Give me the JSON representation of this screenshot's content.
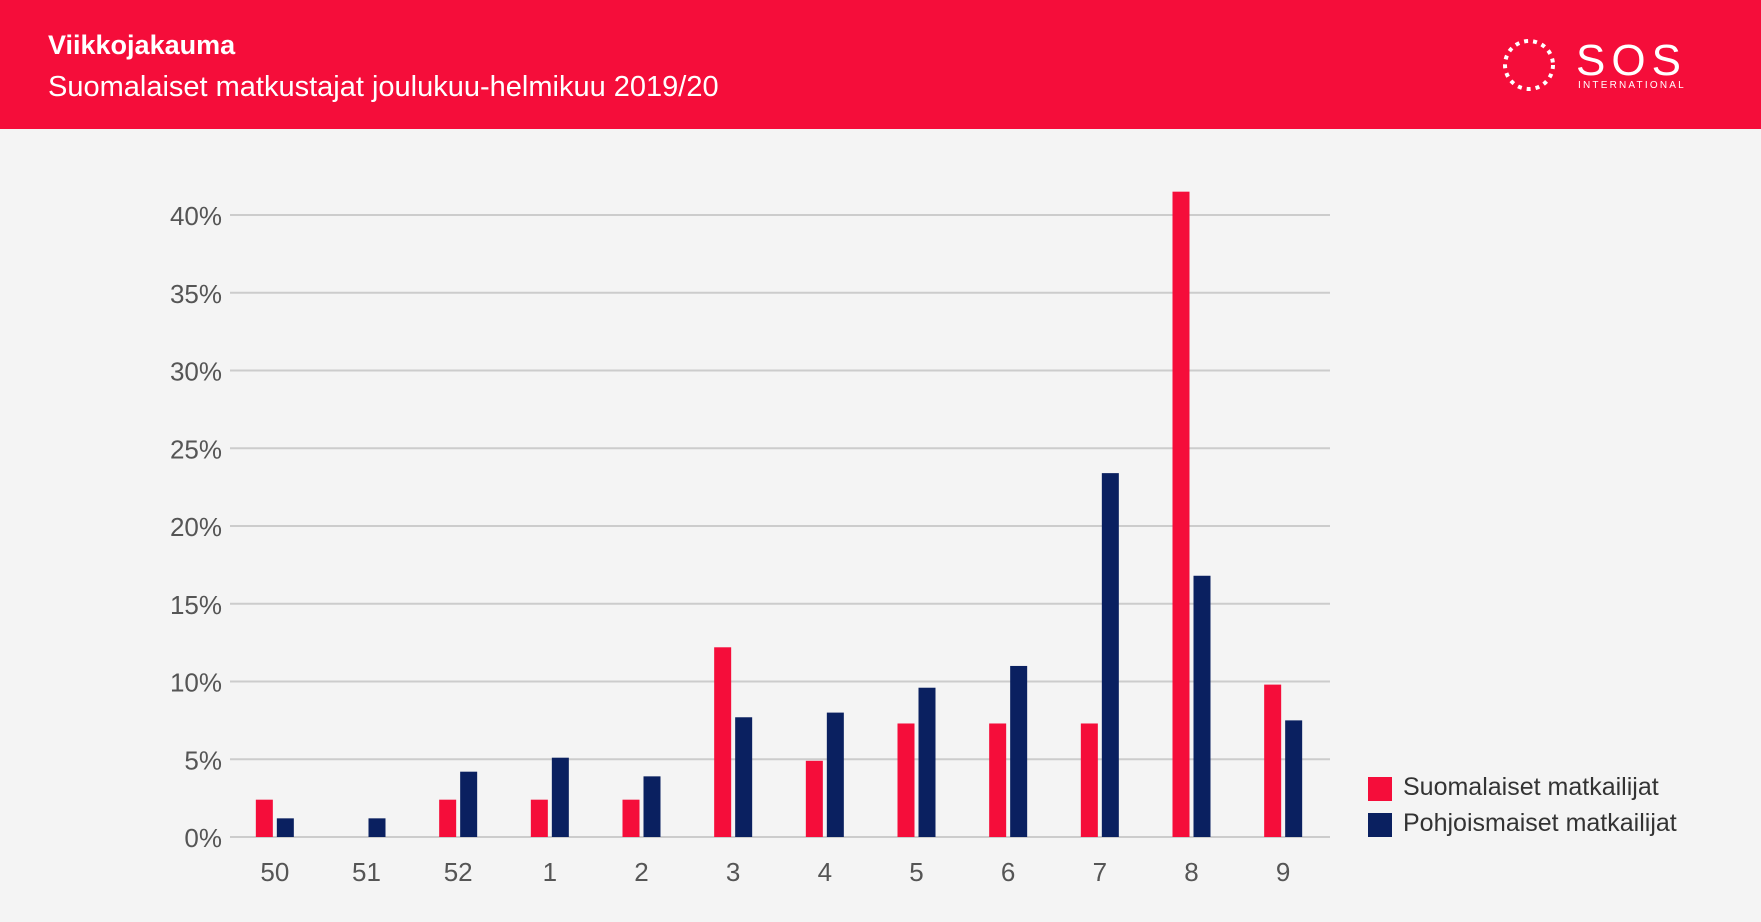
{
  "header": {
    "title": "Viikkojakauma",
    "subtitle": "Suomalaiset matkustajat joulukuu-helmikuu 2019/20"
  },
  "logo": {
    "brand": "SOS",
    "sub": "INTERNATIONAL"
  },
  "colors": {
    "header_bg": "#f50d3a",
    "series_1": "#f50d3a",
    "series_2": "#0a2060",
    "grid": "#cccccc",
    "background": "#f4f4f4"
  },
  "chart_data": {
    "type": "bar",
    "title": "",
    "xlabel": "",
    "ylabel": "",
    "categories": [
      "50",
      "51",
      "52",
      "1",
      "2",
      "3",
      "4",
      "5",
      "6",
      "7",
      "8",
      "9"
    ],
    "series": [
      {
        "name": "Suomalaiset matkailijat",
        "values": [
          2.4,
          0,
          2.4,
          2.4,
          2.4,
          12.2,
          4.9,
          7.3,
          7.3,
          7.3,
          41.5,
          9.8
        ]
      },
      {
        "name": "Pohjoismaiset matkailijat",
        "values": [
          1.2,
          1.2,
          4.2,
          5.1,
          3.9,
          7.7,
          8.0,
          9.6,
          11.0,
          23.4,
          16.8,
          7.5
        ]
      }
    ],
    "ylim": [
      0,
      40
    ],
    "yticks": [
      "0%",
      "5%",
      "10%",
      "15%",
      "20%",
      "25%",
      "30%",
      "35%",
      "40%"
    ],
    "grid": true,
    "legend_position": "bottom-right"
  }
}
